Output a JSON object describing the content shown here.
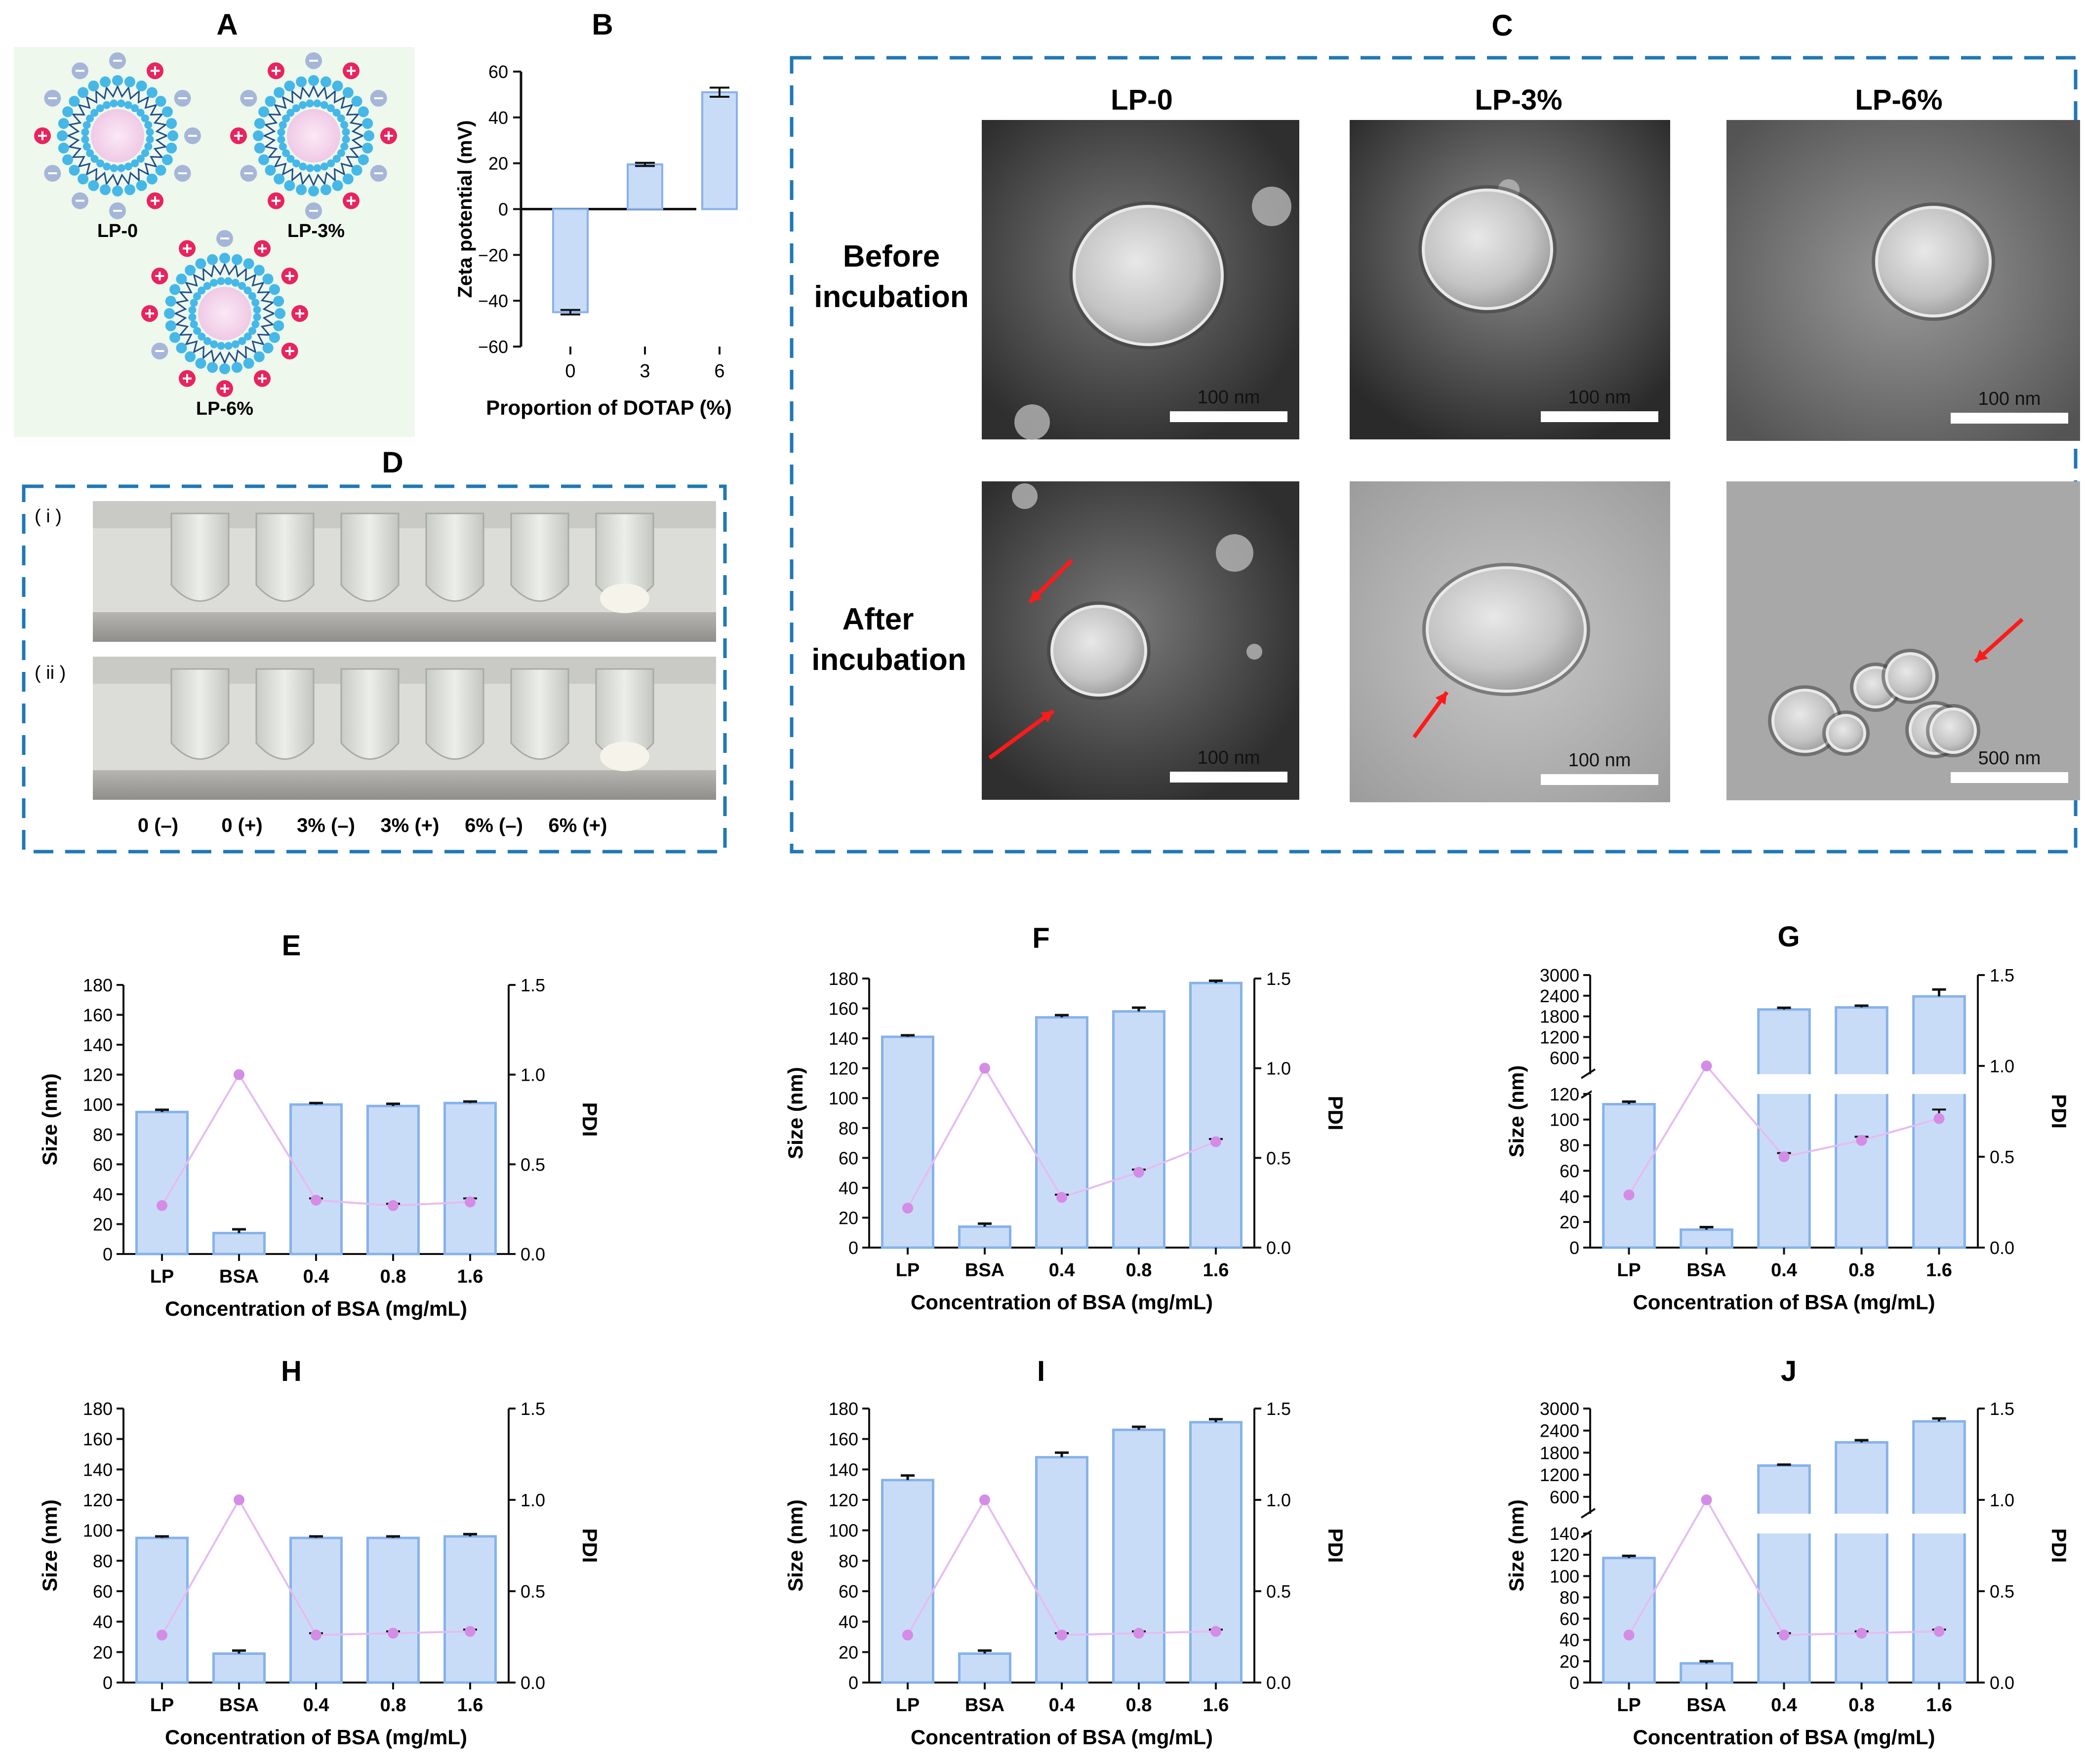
{
  "panels": {
    "A": {
      "letter": "A",
      "labels": [
        "LP-0",
        "LP-3%",
        "LP-6%"
      ]
    },
    "B": {
      "letter": "B",
      "chart_data": {
        "type": "bar",
        "categories": [
          "0",
          "3",
          "6"
        ],
        "values": [
          -45,
          19.5,
          51
        ],
        "errors": [
          1,
          0.7,
          2
        ],
        "xlabel": "Proportion of DOTAP (%)",
        "ylabel": "Zeta potential (mV)",
        "ylim": [
          -60,
          60
        ],
        "yticks": [
          -60,
          -40,
          -20,
          0,
          20,
          40,
          60
        ],
        "yticklabels": [
          "−60",
          "−40",
          "−20",
          "0",
          "20",
          "40",
          "60"
        ],
        "grid": false,
        "bar_color": "#c9dcf7"
      }
    },
    "C": {
      "letter": "C",
      "columns": [
        "LP-0",
        "LP-3%",
        "LP-6%"
      ],
      "rows": [
        {
          "line1": "Before",
          "line2": "incubation",
          "scales": [
            "100 nm",
            "100 nm",
            "100 nm"
          ]
        },
        {
          "line1": "After",
          "line2": "incubation",
          "scales": [
            "100 nm",
            "100 nm",
            "500 nm"
          ]
        }
      ]
    },
    "D": {
      "letter": "D",
      "rows": [
        "( i )",
        "( ii )"
      ],
      "tube_labels": [
        "0 (–)",
        "0 (+)",
        "3% (–)",
        "3% (+)",
        "6% (–)",
        "6% (+)"
      ]
    }
  },
  "size_pdi_charts": {
    "xlabel": "Concentration of BSA (mg/mL)",
    "ylabel_left": "Size (nm)",
    "ylabel_right": "PDI",
    "categories": [
      "LP",
      "BSA",
      "0.4",
      "0.8",
      "1.6"
    ],
    "pdi_ticks": [
      "0.0",
      "0.5",
      "1.0",
      "1.5"
    ],
    "colors": {
      "bar": "#c9dcf7",
      "bar_edge": "#86b2ea",
      "pdi": "#d48ce6",
      "pdi_line": "#e4bdf0"
    }
  },
  "chart_data": [
    {
      "panel": "E",
      "type": "bar",
      "title": "E",
      "size": [
        95,
        14,
        100,
        99,
        101
      ],
      "size_err": [
        1.5,
        2.5,
        1,
        1.5,
        1
      ],
      "pdi": [
        0.27,
        1.0,
        0.3,
        0.27,
        0.29
      ],
      "pdi_err": [
        0,
        0,
        0.01,
        0.01,
        0.02
      ],
      "ylim": [
        0,
        180
      ],
      "yticks": [
        0,
        20,
        40,
        60,
        80,
        100,
        120,
        140,
        160,
        180
      ]
    },
    {
      "panel": "F",
      "type": "bar",
      "title": "F",
      "size": [
        141,
        14,
        154,
        158,
        177
      ],
      "size_err": [
        1,
        2,
        1.5,
        2.5,
        1.5
      ],
      "pdi": [
        0.22,
        1.0,
        0.28,
        0.42,
        0.59
      ],
      "pdi_err": [
        0,
        0,
        0.015,
        0.015,
        0.015
      ],
      "ylim": [
        0,
        180
      ],
      "yticks": [
        0,
        20,
        40,
        60,
        80,
        100,
        120,
        140,
        160,
        180
      ]
    },
    {
      "panel": "G",
      "type": "bar",
      "title": "G",
      "broken_axis": true,
      "size": [
        112,
        14,
        2000,
        2060,
        2380
      ],
      "size_err": [
        2,
        2,
        50,
        50,
        200
      ],
      "pdi": [
        0.29,
        1.0,
        0.5,
        0.59,
        0.71
      ],
      "pdi_err": [
        0,
        0,
        0.02,
        0.02,
        0.05
      ],
      "lower_ylim": [
        0,
        120
      ],
      "lower_yticks": [
        0,
        20,
        40,
        60,
        80,
        100,
        120
      ],
      "upper_ylim": [
        120,
        3000
      ],
      "upper_yticks": [
        600,
        1200,
        1800,
        2400,
        3000
      ]
    },
    {
      "panel": "H",
      "type": "bar",
      "title": "H",
      "size": [
        95,
        19,
        95,
        95,
        96
      ],
      "size_err": [
        1,
        2,
        1,
        1,
        1.5
      ],
      "pdi": [
        0.26,
        1.0,
        0.26,
        0.27,
        0.28
      ],
      "pdi_err": [
        0,
        0,
        0.01,
        0.01,
        0.01
      ],
      "ylim": [
        0,
        180
      ],
      "yticks": [
        0,
        20,
        40,
        60,
        80,
        100,
        120,
        140,
        160,
        180
      ]
    },
    {
      "panel": "I",
      "type": "bar",
      "title": "I",
      "size": [
        133,
        19,
        148,
        166,
        171
      ],
      "size_err": [
        3,
        2,
        3,
        2,
        2
      ],
      "pdi": [
        0.26,
        1.0,
        0.26,
        0.27,
        0.28
      ],
      "pdi_err": [
        0,
        0,
        0.01,
        0.01,
        0.01
      ],
      "ylim": [
        0,
        180
      ],
      "yticks": [
        0,
        20,
        40,
        60,
        80,
        100,
        120,
        140,
        160,
        180
      ]
    },
    {
      "panel": "J",
      "type": "bar",
      "title": "J",
      "broken_axis": true,
      "size": [
        117,
        18,
        1450,
        2080,
        2650
      ],
      "size_err": [
        2,
        2,
        25,
        60,
        80
      ],
      "pdi": [
        0.26,
        1.0,
        0.26,
        0.27,
        0.28
      ],
      "pdi_err": [
        0,
        0,
        0.01,
        0.01,
        0.01
      ],
      "lower_ylim": [
        0,
        140
      ],
      "lower_yticks": [
        0,
        20,
        40,
        60,
        80,
        100,
        120,
        140
      ],
      "upper_ylim": [
        140,
        3000
      ],
      "upper_yticks": [
        600,
        1200,
        1800,
        2400,
        3000
      ]
    }
  ]
}
